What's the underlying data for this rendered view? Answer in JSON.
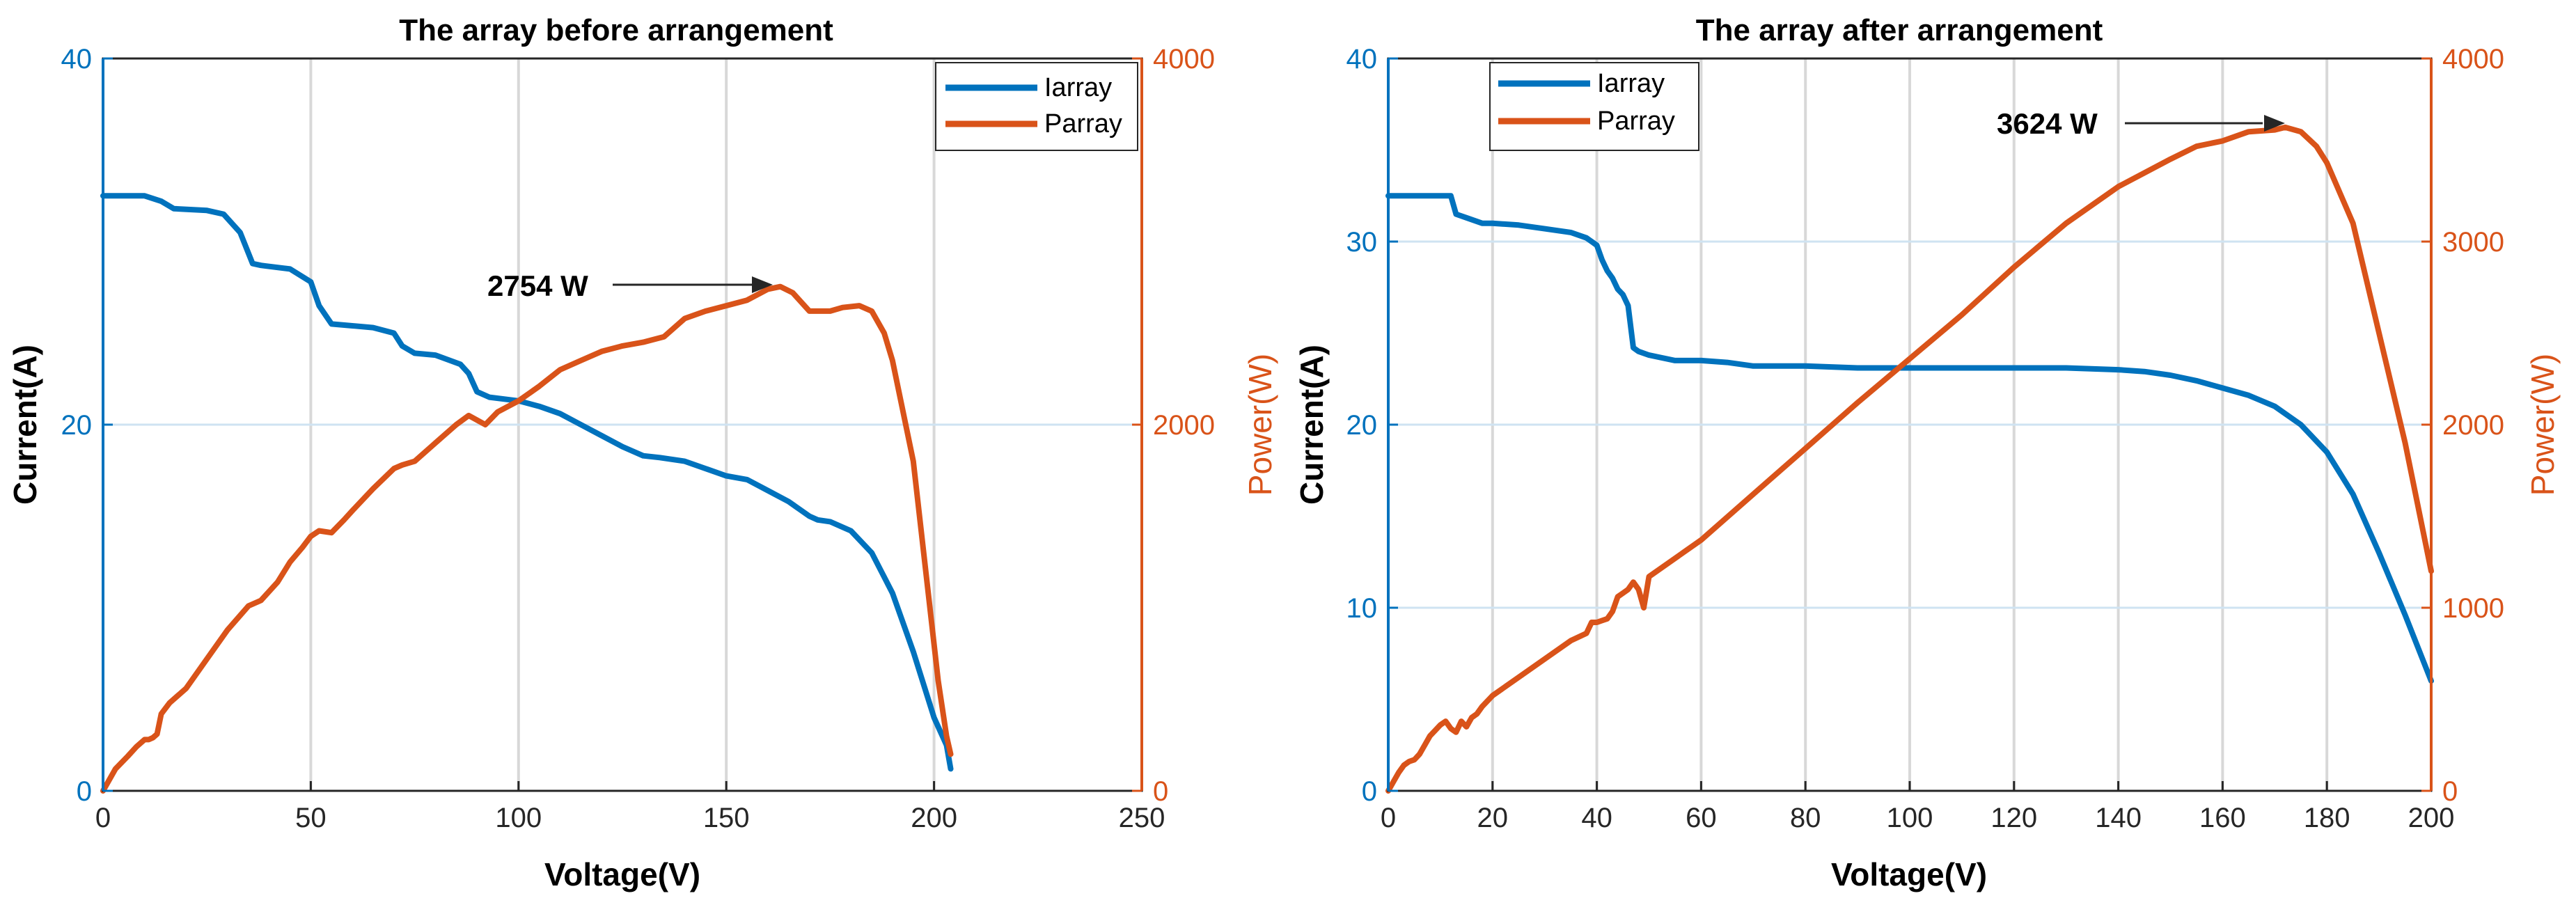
{
  "colors": {
    "current": "#0072BD",
    "power": "#D95319",
    "grid": "#D8D8D8",
    "hgrid": "#CFE3F2",
    "axis": "#262626"
  },
  "chart_data": [
    {
      "type": "line",
      "title": "The array before arrangement",
      "xlabel": "Voltage(V)",
      "ylabel_left": "Current(A)",
      "ylabel_right": "Power(W)",
      "xlim": [
        0,
        250
      ],
      "ylim_left": [
        0,
        40
      ],
      "ylim_right": [
        0,
        4000
      ],
      "xticks": [
        "0",
        "50",
        "100",
        "150",
        "200",
        "250"
      ],
      "yticks_left": [
        "0",
        "20",
        "40"
      ],
      "yticks_right": [
        "0",
        "2000",
        "4000"
      ],
      "legend": [
        "Iarray",
        "Parray"
      ],
      "legend_position": "top-right",
      "annotation": {
        "text": "2754 W",
        "x": 163,
        "y_power": 2754
      },
      "series": [
        {
          "name": "Iarray",
          "axis": "left",
          "x": [
            0,
            10,
            14,
            17,
            25,
            29,
            33,
            36,
            38,
            45,
            50,
            52,
            55,
            60,
            65,
            70,
            72,
            75,
            80,
            86,
            88,
            90,
            93,
            100,
            105,
            110,
            115,
            120,
            125,
            130,
            134,
            140,
            145,
            150,
            155,
            160,
            165,
            170,
            172,
            175,
            180,
            185,
            190,
            195,
            200,
            203,
            204
          ],
          "y": [
            32.5,
            32.5,
            32.2,
            31.8,
            31.7,
            31.5,
            30.5,
            28.8,
            28.7,
            28.5,
            27.8,
            26.5,
            25.5,
            25.4,
            25.3,
            25.0,
            24.3,
            23.9,
            23.8,
            23.3,
            22.8,
            21.8,
            21.5,
            21.3,
            21.0,
            20.6,
            20.0,
            19.4,
            18.8,
            18.3,
            18.2,
            18.0,
            17.6,
            17.2,
            17.0,
            16.4,
            15.8,
            15.0,
            14.8,
            14.7,
            14.2,
            13.0,
            10.8,
            7.6,
            4.0,
            2.5,
            1.2
          ]
        },
        {
          "name": "Parray",
          "axis": "right",
          "x": [
            0,
            3,
            6,
            8,
            10,
            11,
            12,
            13,
            14,
            16,
            20,
            25,
            30,
            35,
            38,
            42,
            45,
            48,
            50,
            52,
            55,
            58,
            60,
            65,
            70,
            72,
            75,
            80,
            85,
            88,
            92,
            95,
            100,
            105,
            110,
            115,
            120,
            125,
            130,
            135,
            140,
            145,
            150,
            155,
            160,
            163,
            166,
            170,
            172,
            175,
            178,
            182,
            185,
            188,
            190,
            195,
            198,
            201,
            203,
            204
          ],
          "y": [
            0,
            120,
            190,
            240,
            280,
            280,
            290,
            310,
            420,
            480,
            560,
            720,
            880,
            1010,
            1040,
            1140,
            1250,
            1330,
            1390,
            1420,
            1410,
            1480,
            1530,
            1650,
            1760,
            1780,
            1800,
            1900,
            2000,
            2050,
            2000,
            2070,
            2130,
            2210,
            2300,
            2350,
            2400,
            2430,
            2450,
            2480,
            2580,
            2620,
            2650,
            2680,
            2740,
            2754,
            2720,
            2620,
            2620,
            2620,
            2640,
            2650,
            2620,
            2500,
            2350,
            1800,
            1200,
            600,
            300,
            200
          ]
        }
      ]
    },
    {
      "type": "line",
      "title": "The array after arrangement",
      "xlabel": "Voltage(V)",
      "ylabel_left": "Current(A)",
      "ylabel_right": "Power(W)",
      "xlim": [
        0,
        200
      ],
      "ylim_left": [
        0,
        40
      ],
      "ylim_right": [
        0,
        4000
      ],
      "xticks": [
        "0",
        "20",
        "40",
        "60",
        "80",
        "100",
        "120",
        "140",
        "160",
        "180",
        "200"
      ],
      "yticks_left": [
        "0",
        "10",
        "20",
        "30",
        "40"
      ],
      "yticks_right": [
        "0",
        "1000",
        "2000",
        "3000",
        "4000"
      ],
      "legend": [
        "Iarray",
        "Parray"
      ],
      "legend_position": "top-left",
      "annotation": {
        "text": "3624 W",
        "x": 172,
        "y_power": 3624
      },
      "series": [
        {
          "name": "Iarray",
          "axis": "left",
          "x": [
            0,
            5,
            10,
            12,
            13,
            15,
            18,
            20,
            25,
            30,
            35,
            38,
            40,
            41,
            42,
            43,
            44,
            45,
            46,
            47,
            48,
            50,
            55,
            60,
            65,
            70,
            75,
            80,
            90,
            100,
            110,
            120,
            130,
            140,
            145,
            150,
            155,
            160,
            165,
            170,
            175,
            180,
            185,
            190,
            195,
            200
          ],
          "y": [
            32.5,
            32.5,
            32.5,
            32.5,
            31.5,
            31.3,
            31.0,
            31.0,
            30.9,
            30.7,
            30.5,
            30.2,
            29.8,
            29.0,
            28.4,
            28.0,
            27.4,
            27.1,
            26.5,
            24.2,
            24.0,
            23.8,
            23.5,
            23.5,
            23.4,
            23.2,
            23.2,
            23.2,
            23.1,
            23.1,
            23.1,
            23.1,
            23.1,
            23.0,
            22.9,
            22.7,
            22.4,
            22.0,
            21.6,
            21.0,
            20.0,
            18.5,
            16.2,
            13.0,
            9.6,
            6.0
          ]
        },
        {
          "name": "Parray",
          "axis": "right",
          "x": [
            0,
            1,
            2,
            3,
            4,
            5,
            6,
            7,
            8,
            9,
            10,
            11,
            12,
            13,
            14,
            15,
            16,
            17,
            18,
            19,
            20,
            25,
            30,
            35,
            38,
            39,
            40,
            41,
            42,
            43,
            44,
            45,
            46,
            47,
            48,
            49,
            50,
            60,
            70,
            80,
            90,
            100,
            110,
            120,
            130,
            140,
            150,
            155,
            160,
            165,
            170,
            172,
            175,
            178,
            180,
            185,
            190,
            195,
            200
          ],
          "y": [
            0,
            50,
            100,
            140,
            160,
            170,
            200,
            250,
            300,
            330,
            360,
            380,
            340,
            320,
            380,
            350,
            400,
            420,
            460,
            490,
            520,
            620,
            720,
            820,
            860,
            920,
            920,
            930,
            940,
            980,
            1060,
            1080,
            1100,
            1140,
            1100,
            1000,
            1170,
            1370,
            1620,
            1870,
            2120,
            2360,
            2600,
            2860,
            3100,
            3300,
            3450,
            3520,
            3550,
            3600,
            3610,
            3624,
            3600,
            3520,
            3430,
            3100,
            2500,
            1900,
            1200
          ]
        }
      ]
    }
  ]
}
